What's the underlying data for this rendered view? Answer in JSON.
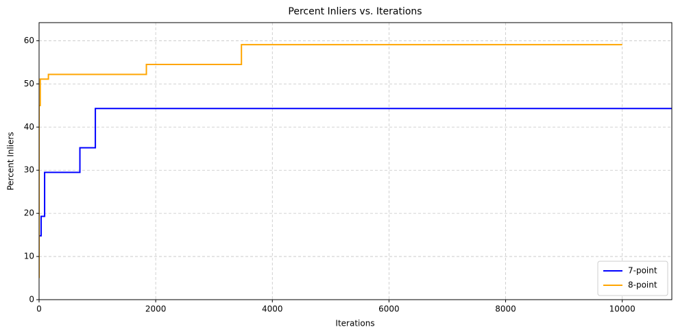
{
  "chart_data": {
    "type": "line",
    "title": "Percent Inliers vs. Iterations",
    "x_label": "Iterations",
    "y_label": "Percent Inliers",
    "series": [
      {
        "name": "7-point",
        "color": "#0000ff",
        "x": [
          0,
          0,
          35,
          35,
          95,
          95,
          700,
          700,
          965,
          965,
          10850
        ],
        "values": [
          13,
          14.8,
          14.8,
          19.3,
          19.3,
          29.5,
          29.5,
          35.2,
          35.2,
          44.3,
          44.3
        ]
      },
      {
        "name": "8-point",
        "color": "#ffa500",
        "x": [
          0,
          0,
          20,
          20,
          160,
          160,
          1840,
          1840,
          3470,
          3470,
          10000
        ],
        "values": [
          5,
          45,
          45,
          51.1,
          51.1,
          52.2,
          52.2,
          54.5,
          54.5,
          59.1,
          59.1
        ]
      }
    ],
    "xlim": [
      0,
      10850
    ],
    "ylim": [
      0,
      64.2
    ],
    "xticks": [
      0,
      2000,
      4000,
      6000,
      8000,
      10000
    ],
    "yticks": [
      0,
      10,
      20,
      30,
      40,
      50,
      60
    ],
    "grid": true,
    "legend": "lower-right"
  }
}
